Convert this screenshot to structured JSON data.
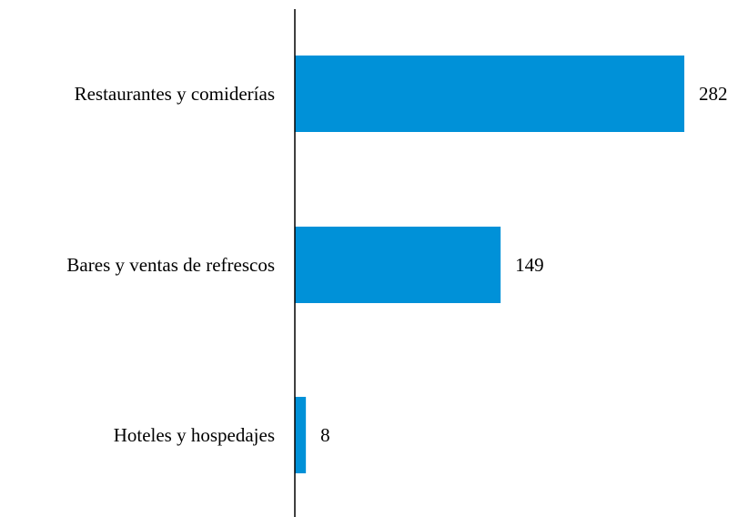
{
  "chart_data": {
    "type": "bar",
    "orientation": "horizontal",
    "categories": [
      "Restaurantes y comiderías",
      "Bares y ventas de refrescos",
      "Hoteles y hospedajes"
    ],
    "values": [
      282,
      149,
      8
    ],
    "data_labels": [
      "282",
      "149",
      "8"
    ],
    "title": "",
    "xlabel": "",
    "ylabel": "",
    "xlim": [
      0,
      282
    ],
    "grid": false,
    "legend": "none",
    "colors": {
      "bar": "#0091D8",
      "axis": "#000000",
      "text": "#000000"
    }
  }
}
